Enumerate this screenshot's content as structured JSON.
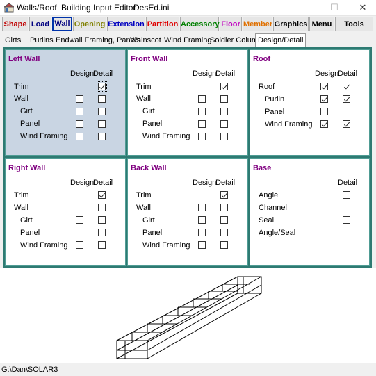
{
  "window": {
    "title_parts": [
      "Walls/Roof",
      "Building Input Editor",
      "DesEd.ini"
    ],
    "controls": [
      "—",
      "☐",
      "✕"
    ]
  },
  "toolbar": {
    "buttons": [
      {
        "label": "Shape",
        "color": "#c00000"
      },
      {
        "label": "Load",
        "color": "#000080"
      },
      {
        "label": "Wall",
        "color": "#000080",
        "active": true
      },
      {
        "label": "Opening",
        "color": "#808000"
      },
      {
        "label": "Extension",
        "color": "#0000c0"
      },
      {
        "label": "Partition",
        "color": "#e00000"
      },
      {
        "label": "Accessory",
        "color": "#008000"
      },
      {
        "label": "Floor",
        "color": "#c000c0"
      },
      {
        "label": "Member",
        "color": "#e07000"
      },
      {
        "label": "Graphics",
        "color": "#000000"
      },
      {
        "label": "Menu",
        "color": "#000000"
      },
      {
        "label": "Tools",
        "color": "#000000"
      }
    ]
  },
  "tabs": [
    "Girts",
    "Purlins",
    "Endwall Framing, Panels",
    "Wainscot",
    "Wind Framing",
    "Soldier Column",
    "Design/Detail"
  ],
  "active_tab": "Design/Detail",
  "col_design": "Design",
  "col_detail": "Detail",
  "panes": {
    "left_wall": {
      "title": "Left Wall",
      "rows": [
        "Trim",
        "Wall",
        "Girt",
        "Panel",
        "Wind Framing"
      ]
    },
    "front_wall": {
      "title": "Front Wall",
      "rows": [
        "Trim",
        "Wall",
        "Girt",
        "Panel",
        "Wind Framing"
      ]
    },
    "roof": {
      "title": "Roof",
      "rows": [
        "Roof",
        "Purlin",
        "Panel",
        "Wind Framing"
      ]
    },
    "right_wall": {
      "title": "Right Wall",
      "rows": [
        "Trim",
        "Wall",
        "Girt",
        "Panel",
        "Wind Framing"
      ]
    },
    "back_wall": {
      "title": "Back Wall",
      "rows": [
        "Trim",
        "Wall",
        "Girt",
        "Panel",
        "Wind Framing"
      ]
    },
    "base": {
      "title": "Base",
      "rows": [
        "Angle",
        "Channel",
        "Seal",
        "Angle/Seal"
      ]
    }
  },
  "checked": {
    "left_wall_trim_detail": true,
    "front_wall_trim_detail": true,
    "roof_roof_design": true,
    "roof_roof_detail": true,
    "roof_purlin_design": true,
    "roof_purlin_detail": true,
    "roof_wind_design": true,
    "roof_wind_detail": true,
    "right_wall_trim_detail": true,
    "back_wall_trim_detail": true
  },
  "status": {
    "path": "G:\\Dan\\SOLAR3"
  }
}
